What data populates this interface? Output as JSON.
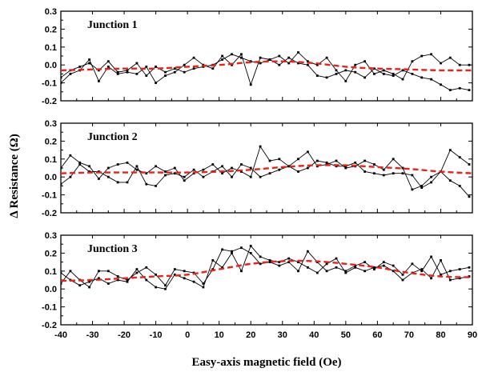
{
  "chart_data": {
    "type": "line",
    "title": "",
    "xlabel": "Easy-axis magnetic field (Oe)",
    "ylabel": "Δ Resistance (Ω)",
    "xlim": [
      -40,
      90
    ],
    "x_ticks": [
      "-40",
      "-30",
      "-20",
      "-10",
      "0",
      "10",
      "20",
      "30",
      "40",
      "50",
      "60",
      "70",
      "80",
      "90"
    ],
    "ylim": [
      -0.2,
      0.3
    ],
    "y_ticks": [
      "-0.2",
      "-0.1",
      "0.0",
      "0.1",
      "0.2",
      "0.3"
    ],
    "grid": false,
    "panels": [
      {
        "label": "Junction 1",
        "series": [
          {
            "x": [
              -40,
              -37,
              -34,
              -31,
              -28,
              -25,
              -22,
              -19,
              -16,
              -13,
              -10,
              -7,
              -4,
              -1,
              2,
              5,
              8,
              11,
              14,
              17,
              20,
              23,
              26,
              29,
              32,
              35,
              38,
              41,
              44,
              47,
              50,
              53,
              56,
              59,
              62,
              65,
              68,
              71,
              74,
              77,
              80,
              83,
              86,
              89
            ],
            "values": [
              -0.07,
              -0.03,
              -0.01,
              0.01,
              -0.03,
              0.02,
              -0.04,
              -0.03,
              0.01,
              -0.06,
              -0.01,
              -0.04,
              -0.02,
              -0.04,
              -0.02,
              -0.01,
              0.0,
              0.03,
              0.06,
              0.04,
              0.02,
              0.01,
              0.03,
              0.0,
              0.04,
              0.01,
              0.0,
              -0.06,
              -0.07,
              -0.05,
              -0.03,
              -0.04,
              -0.07,
              -0.02,
              -0.05,
              -0.06,
              -0.03,
              -0.05,
              -0.07,
              -0.08,
              -0.11,
              -0.14,
              -0.13,
              -0.14
            ]
          },
          {
            "x": [
              -40,
              -37,
              -34,
              -31,
              -28,
              -25,
              -22,
              -19,
              -16,
              -13,
              -10,
              -7,
              -4,
              -1,
              2,
              5,
              8,
              11,
              14,
              17,
              20,
              23,
              26,
              29,
              32,
              35,
              38,
              41,
              44,
              47,
              50,
              53,
              56,
              59,
              62,
              65,
              68,
              71,
              74,
              77,
              80,
              83,
              86,
              89
            ],
            "values": [
              -0.1,
              -0.05,
              -0.03,
              0.03,
              -0.09,
              -0.01,
              -0.05,
              -0.04,
              -0.05,
              -0.01,
              -0.1,
              -0.06,
              -0.04,
              0.0,
              0.04,
              0.0,
              -0.02,
              0.05,
              0.0,
              0.06,
              -0.11,
              0.04,
              0.03,
              0.05,
              0.01,
              0.07,
              0.02,
              0.0,
              0.04,
              -0.03,
              -0.09,
              0.0,
              0.02,
              -0.05,
              -0.03,
              -0.05,
              -0.08,
              0.02,
              0.05,
              0.06,
              0.01,
              0.04,
              0.0,
              0.0
            ]
          },
          {
            "name": "fit",
            "x": [
              -40,
              -30,
              -20,
              -10,
              0,
              10,
              20,
              30,
              40,
              50,
              60,
              70,
              80,
              90
            ],
            "values": [
              -0.03,
              -0.025,
              -0.02,
              -0.02,
              -0.01,
              0.0,
              0.015,
              0.02,
              0.01,
              -0.01,
              -0.02,
              -0.025,
              -0.03,
              -0.03
            ]
          }
        ]
      },
      {
        "label": "Junction 2",
        "series": [
          {
            "x": [
              -40,
              -37,
              -34,
              -31,
              -28,
              -25,
              -22,
              -19,
              -16,
              -13,
              -10,
              -7,
              -4,
              -1,
              2,
              5,
              8,
              11,
              14,
              17,
              20,
              23,
              26,
              29,
              32,
              35,
              38,
              41,
              44,
              47,
              50,
              53,
              56,
              59,
              62,
              65,
              68,
              71,
              74,
              77,
              80,
              83,
              86,
              89
            ],
            "values": [
              0.05,
              0.12,
              0.08,
              0.06,
              -0.01,
              0.05,
              0.07,
              0.08,
              0.04,
              0.02,
              0.06,
              0.03,
              0.05,
              -0.02,
              0.02,
              0.04,
              0.07,
              0.02,
              0.05,
              0.03,
              0.0,
              0.17,
              0.09,
              0.1,
              0.06,
              0.1,
              0.14,
              0.06,
              0.07,
              0.09,
              0.05,
              0.06,
              0.09,
              0.07,
              0.04,
              0.1,
              0.05,
              -0.07,
              -0.05,
              0.0,
              0.03,
              0.15,
              0.11,
              0.07
            ]
          },
          {
            "x": [
              -40,
              -37,
              -34,
              -31,
              -28,
              -25,
              -22,
              -19,
              -16,
              -13,
              -10,
              -7,
              -4,
              -1,
              2,
              5,
              8,
              11,
              14,
              17,
              20,
              23,
              26,
              29,
              32,
              35,
              38,
              41,
              44,
              47,
              50,
              53,
              56,
              59,
              62,
              65,
              68,
              71,
              74,
              77,
              80,
              83,
              86,
              89
            ],
            "values": [
              -0.04,
              0.0,
              0.07,
              0.03,
              0.03,
              0.0,
              -0.03,
              -0.03,
              0.06,
              -0.04,
              -0.05,
              0.01,
              0.02,
              0.0,
              0.04,
              0.0,
              0.03,
              0.06,
              0.0,
              0.07,
              0.05,
              0.0,
              0.02,
              0.04,
              0.06,
              0.03,
              0.05,
              0.09,
              0.08,
              0.06,
              0.06,
              0.08,
              0.03,
              0.02,
              0.01,
              0.02,
              0.02,
              0.01,
              -0.06,
              -0.03,
              0.03,
              -0.02,
              -0.05,
              -0.11
            ]
          },
          {
            "name": "fit",
            "x": [
              -40,
              -30,
              -20,
              -10,
              0,
              10,
              20,
              30,
              40,
              50,
              60,
              70,
              80,
              90
            ],
            "values": [
              0.02,
              0.025,
              0.025,
              0.025,
              0.025,
              0.03,
              0.04,
              0.055,
              0.065,
              0.065,
              0.055,
              0.045,
              0.03,
              0.02
            ]
          }
        ]
      },
      {
        "label": "Junction 3",
        "series": [
          {
            "x": [
              -40,
              -37,
              -34,
              -31,
              -28,
              -25,
              -22,
              -19,
              -16,
              -13,
              -10,
              -7,
              -4,
              -1,
              2,
              5,
              8,
              11,
              14,
              17,
              20,
              23,
              26,
              29,
              32,
              35,
              38,
              41,
              44,
              47,
              50,
              53,
              56,
              59,
              62,
              65,
              68,
              71,
              74,
              77,
              80,
              83,
              86,
              89
            ],
            "values": [
              0.03,
              0.1,
              0.05,
              0.01,
              0.1,
              0.1,
              0.07,
              0.05,
              0.09,
              0.12,
              0.08,
              0.02,
              0.11,
              0.1,
              0.09,
              0.03,
              0.11,
              0.22,
              0.21,
              0.23,
              0.2,
              0.14,
              0.15,
              0.13,
              0.15,
              0.1,
              0.21,
              0.15,
              0.1,
              0.12,
              0.1,
              0.13,
              0.15,
              0.11,
              0.15,
              0.13,
              0.08,
              0.14,
              0.1,
              0.18,
              0.08,
              0.1,
              0.11,
              0.12
            ]
          },
          {
            "x": [
              -40,
              -37,
              -34,
              -31,
              -28,
              -25,
              -22,
              -19,
              -16,
              -13,
              -10,
              -7,
              -4,
              -1,
              2,
              5,
              8,
              11,
              14,
              17,
              20,
              23,
              26,
              29,
              32,
              35,
              38,
              41,
              44,
              47,
              50,
              53,
              56,
              59,
              62,
              65,
              68,
              71,
              74,
              77,
              80,
              83,
              86,
              89
            ],
            "values": [
              0.09,
              0.05,
              0.02,
              0.04,
              0.06,
              0.03,
              0.05,
              0.04,
              0.11,
              0.05,
              0.01,
              0.0,
              0.08,
              0.06,
              0.04,
              0.01,
              0.16,
              0.12,
              0.2,
              0.1,
              0.24,
              0.18,
              0.16,
              0.15,
              0.17,
              0.15,
              0.12,
              0.09,
              0.14,
              0.17,
              0.09,
              0.12,
              0.1,
              0.12,
              0.13,
              0.1,
              0.05,
              0.09,
              0.11,
              0.06,
              0.16,
              0.05,
              0.06,
              0.07
            ]
          },
          {
            "name": "fit",
            "x": [
              -40,
              -30,
              -20,
              -10,
              0,
              10,
              20,
              30,
              40,
              50,
              60,
              70,
              80,
              90
            ],
            "values": [
              0.045,
              0.05,
              0.06,
              0.07,
              0.08,
              0.11,
              0.14,
              0.155,
              0.155,
              0.14,
              0.12,
              0.09,
              0.07,
              0.065
            ]
          }
        ]
      }
    ]
  },
  "colors": {
    "data_line": "#000000",
    "fit_line": "#e8221c",
    "axis": "#000000",
    "background": "#ffffff"
  }
}
